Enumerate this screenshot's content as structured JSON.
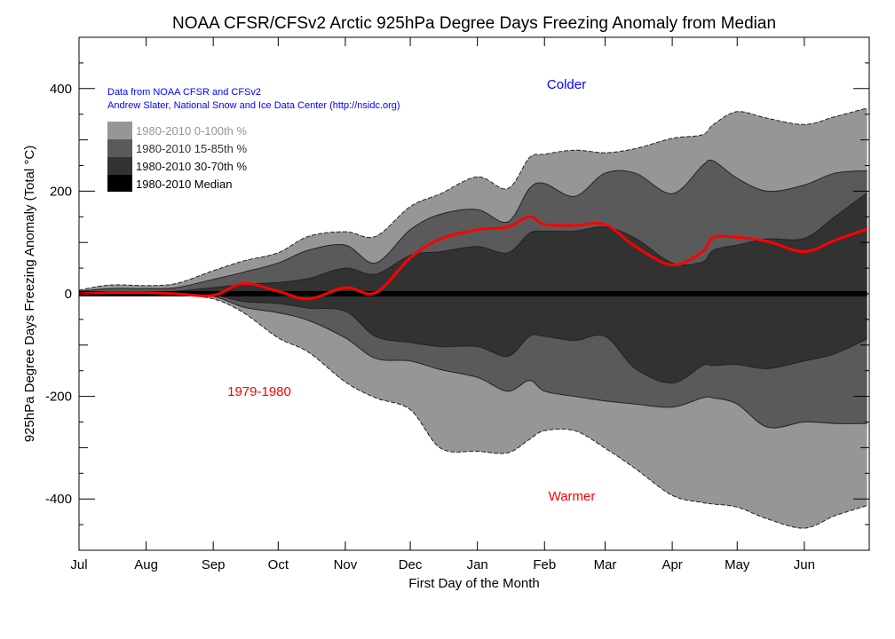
{
  "chart_data": {
    "type": "area",
    "title": "NOAA CFSR/CFSv2 Arctic 925hPa Degree Days Freezing Anomaly from Median",
    "xlabel": "First Day of the Month",
    "ylabel": "925hPa Degree Days Freezing Anomaly (Total °C)",
    "x_tick_labels": [
      "Jul",
      "Aug",
      "Sep",
      "Oct",
      "Nov",
      "Dec",
      "Jan",
      "Feb",
      "Mar",
      "Apr",
      "May",
      "Jun"
    ],
    "y_ticks": [
      -400,
      -200,
      0,
      200,
      400
    ],
    "ylim": [
      -500,
      500
    ],
    "grid": false,
    "credits": [
      "Data from NOAA CFSR and CFSv2",
      "Andrew Slater, National Snow and Ice Data Center (http://nsidc.org)"
    ],
    "annotations": {
      "colder": "Colder",
      "warmer": "Warmer",
      "series_label": "1979-1980"
    },
    "legend": {
      "placement": "top-left",
      "entries": [
        {
          "label": "1980-2010 0-100th %",
          "color": "#969696"
        },
        {
          "label": "1980-2010 15-85th %",
          "color": "#5a5a5a"
        },
        {
          "label": "1980-2010 30-70th %",
          "color": "#323232"
        },
        {
          "label": "1980-2010 Median",
          "color": "#000000"
        }
      ]
    },
    "colors": {
      "range_0_100": "#969696",
      "range_15_85": "#5a5a5a",
      "range_30_70": "#323232",
      "median": "#000000",
      "series_1979_1980": "#ff0000",
      "colder_text": "#0000ff",
      "warmer_text": "#ff0000",
      "credits_text": "#0000ff"
    },
    "x": [
      "07-01",
      "07-15",
      "08-01",
      "08-15",
      "09-01",
      "09-15",
      "10-01",
      "10-15",
      "11-01",
      "11-15",
      "12-01",
      "12-15",
      "01-01",
      "01-15",
      "01-25",
      "02-01",
      "02-15",
      "03-01",
      "03-15",
      "04-01",
      "04-15",
      "04-20",
      "05-01",
      "05-15",
      "06-01",
      "06-15",
      "06-30"
    ],
    "bands": {
      "p100": [
        7,
        17,
        16,
        20,
        45,
        64,
        80,
        112,
        121,
        112,
        170,
        195,
        228,
        205,
        265,
        272,
        280,
        275,
        283,
        303,
        310,
        330,
        355,
        342,
        330,
        345,
        362
      ],
      "p85": [
        5,
        10,
        10,
        12,
        28,
        42,
        60,
        85,
        95,
        60,
        125,
        155,
        164,
        140,
        205,
        215,
        190,
        235,
        235,
        195,
        250,
        259,
        225,
        200,
        212,
        235,
        240
      ],
      "p70": [
        2,
        2,
        3,
        5,
        12,
        18,
        22,
        30,
        50,
        38,
        75,
        82,
        92,
        80,
        118,
        122,
        122,
        130,
        108,
        60,
        62,
        85,
        95,
        107,
        108,
        150,
        197
      ],
      "p30": [
        0,
        -1,
        -1,
        -1,
        -2,
        -15,
        -19,
        -28,
        -34,
        -83,
        -95,
        -103,
        -103,
        -122,
        -83,
        -83,
        -91,
        -83,
        -146,
        -174,
        -140,
        -140,
        -138,
        -146,
        -131,
        -117,
        -88
      ],
      "p15": [
        0,
        -1,
        -1,
        -2,
        -5,
        -26,
        -37,
        -52,
        -86,
        -126,
        -131,
        -148,
        -163,
        -190,
        -169,
        -190,
        -200,
        -209,
        -215,
        -221,
        -203,
        -203,
        -215,
        -260,
        -250,
        -253,
        -253
      ],
      "p0": [
        0,
        -1,
        -1,
        -2,
        -10,
        -37,
        -86,
        -114,
        -172,
        -203,
        -226,
        -301,
        -307,
        -310,
        -284,
        -267,
        -267,
        -301,
        -341,
        -393,
        -407,
        -410,
        -416,
        -439,
        -457,
        -433,
        -413
      ],
      "median": [
        0,
        0,
        0,
        0,
        0,
        0,
        0,
        0,
        0,
        0,
        0,
        0,
        0,
        0,
        0,
        0,
        0,
        0,
        0,
        0,
        0,
        0,
        0,
        0,
        0,
        0,
        0
      ]
    },
    "series": [
      {
        "name": "1979-1980",
        "values": [
          0,
          2,
          2,
          0,
          -3,
          20,
          5,
          -10,
          12,
          2,
          70,
          107,
          125,
          130,
          150,
          135,
          133,
          135,
          92,
          56,
          82,
          110,
          110,
          102,
          82,
          104,
          126
        ]
      }
    ]
  }
}
